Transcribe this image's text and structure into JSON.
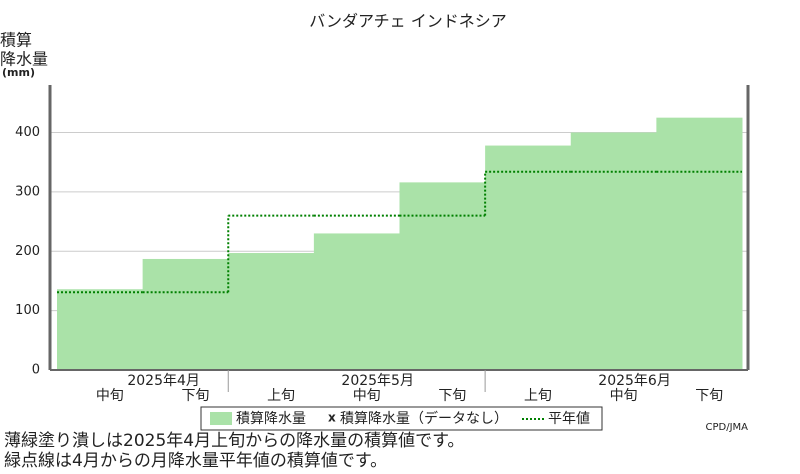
{
  "chart_data": {
    "type": "step-area",
    "title": "バンダアチェ インドネシア",
    "y_label": [
      "積算",
      "降水量",
      "(mm)"
    ],
    "categories": [
      "中旬",
      "下旬",
      "上旬",
      "中旬",
      "下旬",
      "上旬",
      "中旬",
      "下旬"
    ],
    "months": [
      "2025年4月",
      "2025年5月",
      "2025年6月"
    ],
    "series": [
      {
        "name": "積算降水量",
        "color": "#aae2a8",
        "values": [
          136,
          187,
          197,
          230,
          316,
          378,
          400,
          425
        ]
      },
      {
        "name": "平年値",
        "color": "#008000",
        "values": [
          131,
          131,
          260,
          260,
          260,
          334,
          334,
          334
        ]
      }
    ],
    "no_data_label": "積算降水量（データなし）",
    "ylim": [
      0,
      480
    ],
    "yticks": [
      0,
      100,
      200,
      300,
      400
    ],
    "grid": true,
    "credit": "CPD/JMA",
    "notes": [
      "薄緑塗り潰しは2025年4月上旬からの降水量の積算値です。",
      "緑点線は4月からの月降水量平年値の積算値です。"
    ]
  }
}
